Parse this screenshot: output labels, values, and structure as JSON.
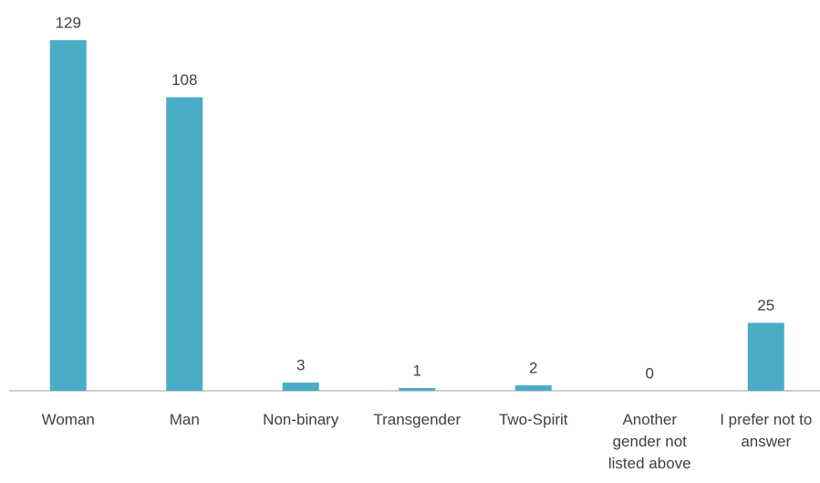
{
  "chart_data": {
    "type": "bar",
    "categories": [
      "Woman",
      "Man",
      "Non-binary",
      "Transgender",
      "Two-Spirit",
      "Another gender not listed above",
      "I prefer not to answer"
    ],
    "values": [
      129,
      108,
      3,
      1,
      2,
      0,
      25
    ],
    "color": "#4bacc6",
    "grid": false
  }
}
